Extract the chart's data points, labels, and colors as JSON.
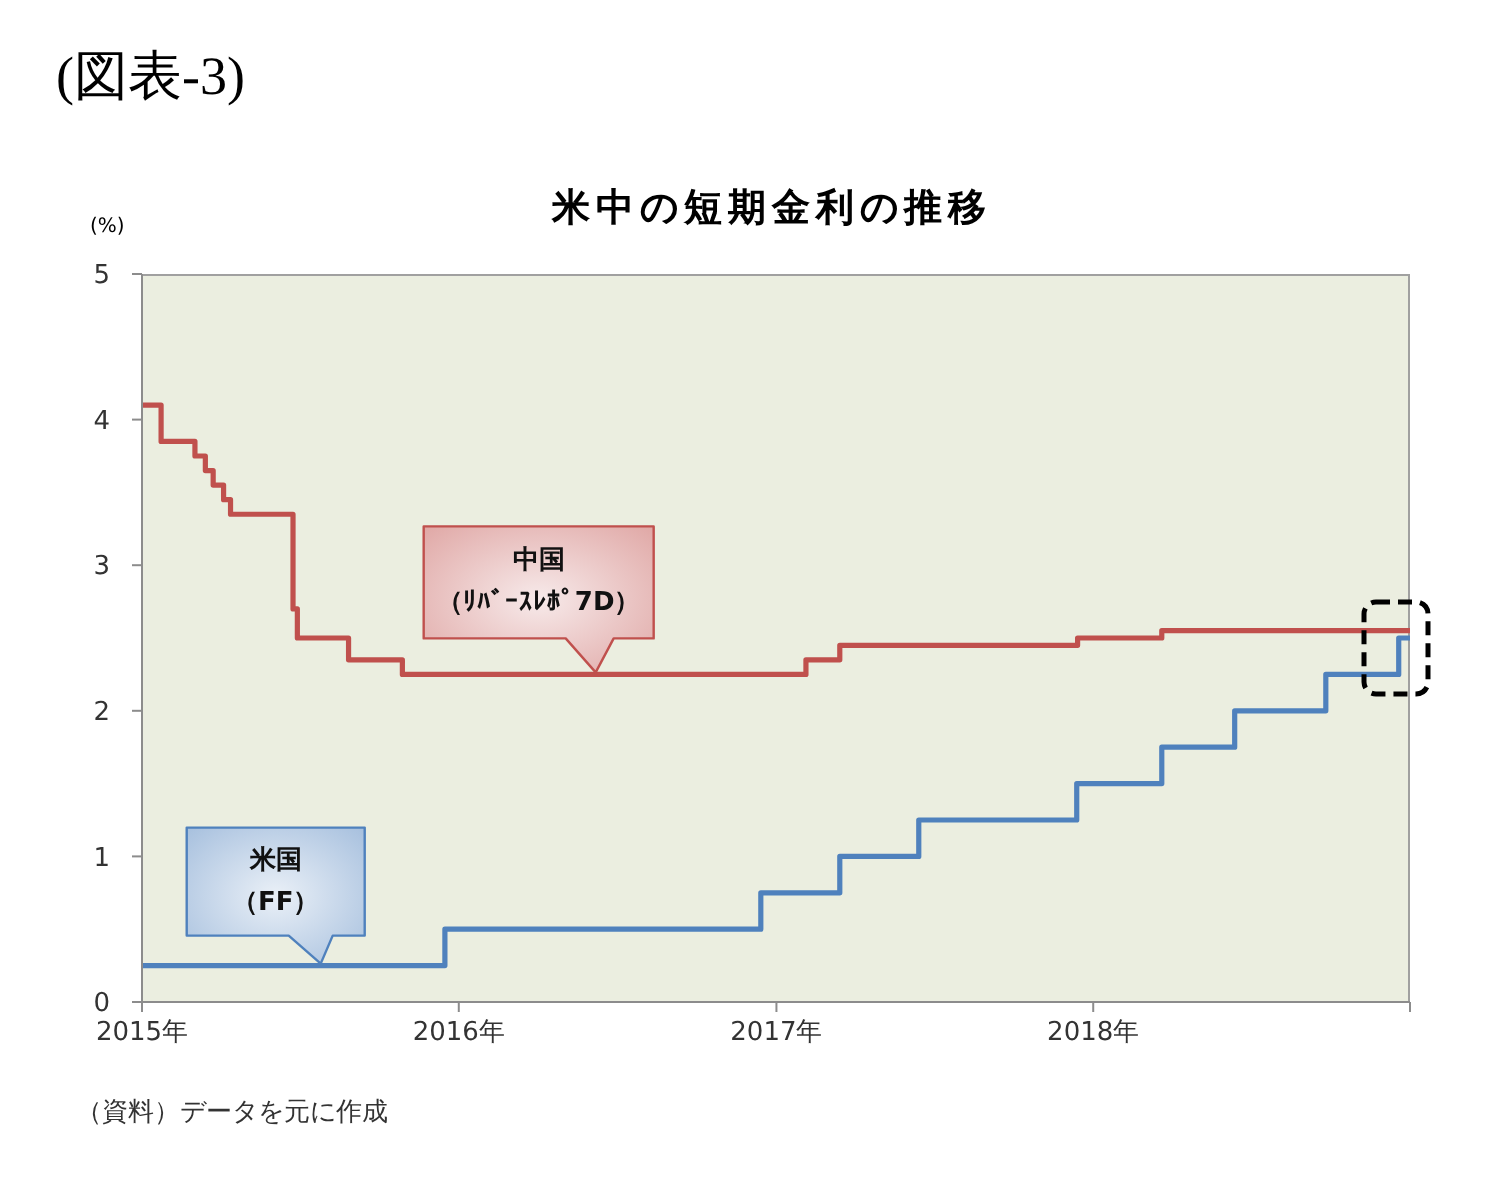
{
  "chart_data": {
    "type": "step",
    "title": "(図表-3)",
    "subtitle": "米中の短期金利の推移",
    "ylabel": "(%)",
    "annotations": [
      "（資料）データを元に作成"
    ],
    "xlim": [
      "2015-01-01",
      "2019-01-01"
    ],
    "xticks": [
      {
        "value": "2015-01-01",
        "label": "2015年"
      },
      {
        "value": "2016-01-01",
        "label": "2016年"
      },
      {
        "value": "2017-01-01",
        "label": "2017年"
      },
      {
        "value": "2018-01-01",
        "label": "2018年"
      },
      {
        "value": "2019-01-01",
        "label": null
      }
    ],
    "ylim": [
      0,
      5
    ],
    "yticks": [
      0,
      1,
      2,
      3,
      4,
      5
    ],
    "marker": "none",
    "series": [
      {
        "name": "中国（ﾘﾊﾞｰｽﾚﾎﾟ7D）",
        "color": "#c0504d",
        "x": [
          "2015-01-01",
          "2015-01-23",
          "2015-03-03",
          "2015-03-15",
          "2015-03-24",
          "2015-04-05",
          "2015-04-13",
          "2015-06-24",
          "2015-06-29",
          "2015-08-27",
          "2015-10-28",
          "2017-02-04",
          "2017-03-15",
          "2017-12-14",
          "2018-03-21",
          "2019-01-01"
        ],
        "values": [
          4.1,
          3.85,
          3.75,
          3.65,
          3.55,
          3.45,
          3.35,
          2.7,
          2.5,
          2.35,
          2.25,
          2.35,
          2.45,
          2.5,
          2.55,
          2.55
        ]
      },
      {
        "name": "米国（FF）",
        "color": "#4f81bd",
        "x": [
          "2015-01-01",
          "2015-12-16",
          "2016-12-14",
          "2017-03-15",
          "2017-06-14",
          "2017-12-13",
          "2018-03-21",
          "2018-06-13",
          "2018-09-26",
          "2018-12-19",
          "2019-01-01"
        ],
        "values": [
          0.25,
          0.5,
          0.75,
          1,
          1.25,
          1.5,
          1.75,
          2,
          2.25,
          2.5,
          2.5
        ]
      }
    ]
  }
}
